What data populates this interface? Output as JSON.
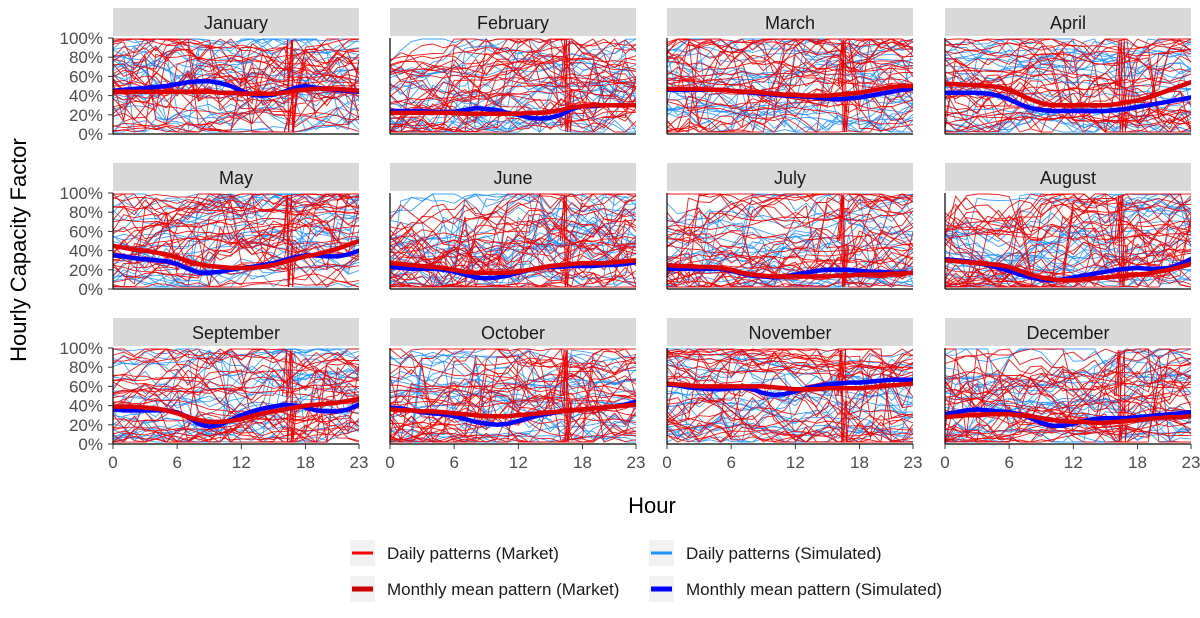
{
  "chart_data": {
    "type": "line",
    "ylabel": "Hourly Capacity Factor",
    "xlabel": "Hour",
    "x_ticks": [
      0,
      6,
      12,
      18,
      23
    ],
    "x_tick_labels": [
      "0",
      "6",
      "12",
      "18",
      "23"
    ],
    "xlim": [
      0,
      23
    ],
    "ylim": [
      0,
      1
    ],
    "y_ticks": [
      0,
      0.2,
      0.4,
      0.6,
      0.8,
      1.0
    ],
    "y_tick_labels": [
      "0%",
      "20%",
      "40%",
      "60%",
      "80%",
      "100%"
    ],
    "facet_layout": {
      "rows": 3,
      "cols": 4
    },
    "legend_position": "bottom",
    "legend": [
      {
        "name": "Daily patterns (Market)",
        "color": "#ff0000"
      },
      {
        "name": "Daily patterns (Simulated)",
        "color": "#1e90ff"
      },
      {
        "name": "Monthly mean pattern (Market)",
        "color": "#cc0000"
      },
      {
        "name": "Monthly mean pattern (Simulated)",
        "color": "#0000ff"
      }
    ],
    "colors": {
      "daily_market": "#ee0000",
      "daily_simulated": "#1e8fff",
      "mean_market": "#dd0000",
      "mean_simulated": "#0000ff",
      "strip_background": "#d9d9d9"
    },
    "facets": [
      {
        "month": "January",
        "mean_market": [
          0.44,
          0.44,
          0.44,
          0.44,
          0.44,
          0.44,
          0.44,
          0.44,
          0.44,
          0.44,
          0.43,
          0.43,
          0.42,
          0.42,
          0.42,
          0.42,
          0.43,
          0.45,
          0.46,
          0.47,
          0.47,
          0.47,
          0.46,
          0.45
        ],
        "mean_simulated": [
          0.45,
          0.46,
          0.47,
          0.48,
          0.49,
          0.5,
          0.52,
          0.54,
          0.55,
          0.55,
          0.53,
          0.5,
          0.45,
          0.41,
          0.4,
          0.41,
          0.44,
          0.48,
          0.5,
          0.48,
          0.47,
          0.46,
          0.45,
          0.44
        ]
      },
      {
        "month": "February",
        "mean_market": [
          0.22,
          0.22,
          0.22,
          0.22,
          0.22,
          0.22,
          0.22,
          0.21,
          0.21,
          0.21,
          0.21,
          0.21,
          0.21,
          0.22,
          0.22,
          0.23,
          0.25,
          0.28,
          0.29,
          0.3,
          0.3,
          0.3,
          0.3,
          0.3
        ],
        "mean_simulated": [
          0.24,
          0.24,
          0.24,
          0.24,
          0.23,
          0.23,
          0.23,
          0.25,
          0.27,
          0.26,
          0.25,
          0.22,
          0.2,
          0.17,
          0.16,
          0.17,
          0.2,
          0.26,
          0.29,
          0.29,
          0.3,
          0.3,
          0.3,
          0.3
        ]
      },
      {
        "month": "March",
        "mean_market": [
          0.47,
          0.47,
          0.47,
          0.47,
          0.46,
          0.46,
          0.45,
          0.44,
          0.44,
          0.43,
          0.42,
          0.41,
          0.41,
          0.4,
          0.4,
          0.4,
          0.41,
          0.42,
          0.43,
          0.45,
          0.47,
          0.49,
          0.5,
          0.5
        ],
        "mean_simulated": [
          0.46,
          0.46,
          0.46,
          0.46,
          0.46,
          0.46,
          0.45,
          0.44,
          0.43,
          0.42,
          0.41,
          0.4,
          0.4,
          0.39,
          0.38,
          0.37,
          0.36,
          0.37,
          0.38,
          0.4,
          0.42,
          0.44,
          0.46,
          0.47
        ]
      },
      {
        "month": "April",
        "mean_market": [
          0.52,
          0.52,
          0.51,
          0.51,
          0.5,
          0.49,
          0.46,
          0.41,
          0.36,
          0.32,
          0.3,
          0.3,
          0.3,
          0.3,
          0.3,
          0.3,
          0.31,
          0.33,
          0.35,
          0.38,
          0.42,
          0.46,
          0.5,
          0.54
        ],
        "mean_simulated": [
          0.43,
          0.43,
          0.43,
          0.43,
          0.42,
          0.4,
          0.36,
          0.31,
          0.27,
          0.25,
          0.24,
          0.24,
          0.24,
          0.24,
          0.24,
          0.24,
          0.25,
          0.26,
          0.28,
          0.3,
          0.32,
          0.34,
          0.36,
          0.38
        ]
      },
      {
        "month": "May",
        "mean_market": [
          0.45,
          0.43,
          0.41,
          0.4,
          0.38,
          0.36,
          0.33,
          0.29,
          0.26,
          0.24,
          0.23,
          0.22,
          0.22,
          0.22,
          0.23,
          0.25,
          0.28,
          0.31,
          0.34,
          0.36,
          0.39,
          0.42,
          0.46,
          0.5
        ],
        "mean_simulated": [
          0.35,
          0.34,
          0.32,
          0.31,
          0.3,
          0.29,
          0.26,
          0.21,
          0.17,
          0.17,
          0.18,
          0.2,
          0.22,
          0.23,
          0.25,
          0.27,
          0.3,
          0.33,
          0.35,
          0.35,
          0.34,
          0.34,
          0.36,
          0.4
        ]
      },
      {
        "month": "June",
        "mean_market": [
          0.27,
          0.26,
          0.25,
          0.24,
          0.23,
          0.22,
          0.2,
          0.18,
          0.17,
          0.17,
          0.17,
          0.17,
          0.18,
          0.2,
          0.22,
          0.24,
          0.25,
          0.26,
          0.27,
          0.27,
          0.27,
          0.28,
          0.29,
          0.3
        ],
        "mean_simulated": [
          0.23,
          0.22,
          0.21,
          0.21,
          0.21,
          0.2,
          0.18,
          0.15,
          0.12,
          0.11,
          0.12,
          0.14,
          0.17,
          0.2,
          0.22,
          0.23,
          0.23,
          0.24,
          0.24,
          0.24,
          0.25,
          0.25,
          0.26,
          0.28
        ]
      },
      {
        "month": "July",
        "mean_market": [
          0.25,
          0.24,
          0.24,
          0.23,
          0.23,
          0.22,
          0.2,
          0.17,
          0.15,
          0.14,
          0.13,
          0.13,
          0.13,
          0.13,
          0.13,
          0.13,
          0.14,
          0.14,
          0.15,
          0.15,
          0.15,
          0.16,
          0.16,
          0.17
        ],
        "mean_simulated": [
          0.21,
          0.21,
          0.21,
          0.21,
          0.21,
          0.21,
          0.19,
          0.16,
          0.14,
          0.13,
          0.12,
          0.13,
          0.15,
          0.17,
          0.19,
          0.2,
          0.2,
          0.2,
          0.19,
          0.18,
          0.18,
          0.17,
          0.17,
          0.17
        ]
      },
      {
        "month": "August",
        "mean_market": [
          0.3,
          0.29,
          0.28,
          0.27,
          0.26,
          0.25,
          0.23,
          0.19,
          0.15,
          0.12,
          0.1,
          0.09,
          0.09,
          0.1,
          0.11,
          0.12,
          0.13,
          0.14,
          0.15,
          0.16,
          0.18,
          0.2,
          0.23,
          0.26
        ],
        "mean_simulated": [
          0.31,
          0.3,
          0.29,
          0.27,
          0.25,
          0.22,
          0.19,
          0.15,
          0.12,
          0.1,
          0.09,
          0.1,
          0.12,
          0.14,
          0.16,
          0.18,
          0.2,
          0.21,
          0.22,
          0.21,
          0.21,
          0.22,
          0.26,
          0.31
        ]
      },
      {
        "month": "September",
        "mean_market": [
          0.39,
          0.39,
          0.39,
          0.38,
          0.37,
          0.35,
          0.32,
          0.28,
          0.25,
          0.23,
          0.23,
          0.24,
          0.26,
          0.29,
          0.32,
          0.34,
          0.36,
          0.38,
          0.4,
          0.41,
          0.42,
          0.43,
          0.45,
          0.47
        ],
        "mean_simulated": [
          0.36,
          0.35,
          0.35,
          0.35,
          0.35,
          0.35,
          0.33,
          0.28,
          0.21,
          0.18,
          0.2,
          0.25,
          0.3,
          0.34,
          0.37,
          0.39,
          0.41,
          0.4,
          0.38,
          0.35,
          0.34,
          0.34,
          0.36,
          0.41
        ]
      },
      {
        "month": "October",
        "mean_market": [
          0.36,
          0.35,
          0.35,
          0.34,
          0.34,
          0.33,
          0.32,
          0.31,
          0.3,
          0.29,
          0.29,
          0.29,
          0.3,
          0.31,
          0.32,
          0.33,
          0.34,
          0.35,
          0.36,
          0.37,
          0.38,
          0.39,
          0.4,
          0.41
        ],
        "mean_simulated": [
          0.38,
          0.37,
          0.35,
          0.33,
          0.32,
          0.31,
          0.29,
          0.26,
          0.23,
          0.21,
          0.2,
          0.21,
          0.24,
          0.27,
          0.3,
          0.32,
          0.34,
          0.35,
          0.36,
          0.37,
          0.38,
          0.39,
          0.41,
          0.44
        ]
      },
      {
        "month": "November",
        "mean_market": [
          0.63,
          0.62,
          0.61,
          0.6,
          0.6,
          0.6,
          0.6,
          0.6,
          0.6,
          0.6,
          0.59,
          0.58,
          0.57,
          0.57,
          0.57,
          0.58,
          0.58,
          0.58,
          0.58,
          0.59,
          0.6,
          0.61,
          0.62,
          0.63
        ],
        "mean_simulated": [
          0.62,
          0.61,
          0.59,
          0.58,
          0.57,
          0.57,
          0.58,
          0.59,
          0.57,
          0.53,
          0.51,
          0.52,
          0.55,
          0.58,
          0.6,
          0.62,
          0.63,
          0.64,
          0.64,
          0.65,
          0.66,
          0.67,
          0.67,
          0.67
        ]
      },
      {
        "month": "December",
        "mean_market": [
          0.28,
          0.29,
          0.3,
          0.3,
          0.31,
          0.31,
          0.31,
          0.3,
          0.29,
          0.27,
          0.25,
          0.24,
          0.23,
          0.23,
          0.22,
          0.22,
          0.23,
          0.24,
          0.25,
          0.26,
          0.27,
          0.28,
          0.28,
          0.29
        ],
        "mean_simulated": [
          0.31,
          0.33,
          0.35,
          0.36,
          0.35,
          0.34,
          0.33,
          0.31,
          0.27,
          0.22,
          0.19,
          0.19,
          0.21,
          0.24,
          0.26,
          0.27,
          0.27,
          0.27,
          0.28,
          0.29,
          0.3,
          0.31,
          0.32,
          0.33
        ]
      }
    ]
  }
}
